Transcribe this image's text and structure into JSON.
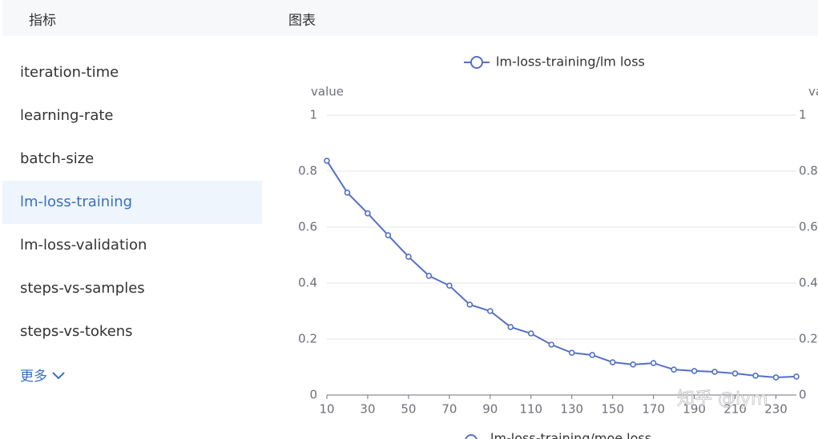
{
  "header": {
    "metrics": "指标",
    "charts": "图表"
  },
  "sidebar": {
    "items": [
      "iteration-time",
      "learning-rate",
      "batch-size",
      "lm-loss-training",
      "lm-loss-validation",
      "steps-vs-samples",
      "steps-vs-tokens"
    ],
    "selected": 3,
    "more": "更多"
  },
  "chart_data": {
    "type": "line",
    "y_label": "value",
    "series": [
      {
        "name": "lm-loss-training/lm loss",
        "color": "#5470c6",
        "values": [
          0.837,
          0.723,
          0.649,
          0.571,
          0.494,
          0.426,
          0.391,
          0.323,
          0.3,
          0.243,
          0.22,
          0.18,
          0.151,
          0.143,
          0.117,
          0.109,
          0.114,
          0.091,
          0.086,
          0.083,
          0.077,
          0.069,
          0.063,
          0.066
        ]
      }
    ],
    "x": [
      10,
      20,
      30,
      40,
      50,
      60,
      70,
      80,
      90,
      100,
      110,
      120,
      130,
      140,
      150,
      160,
      170,
      180,
      190,
      200,
      210,
      220,
      230,
      240
    ],
    "xlim": [
      10,
      240
    ],
    "xticks": [
      10,
      30,
      50,
      70,
      90,
      110,
      130,
      150,
      170,
      190,
      210,
      230
    ],
    "ylim": [
      0,
      1
    ],
    "yticks": [
      0,
      0.2,
      0.4,
      0.6,
      0.8,
      1
    ],
    "grid": true,
    "next_legend": "lm-loss-training/moe loss",
    "watermark": "知乎 @lym"
  }
}
